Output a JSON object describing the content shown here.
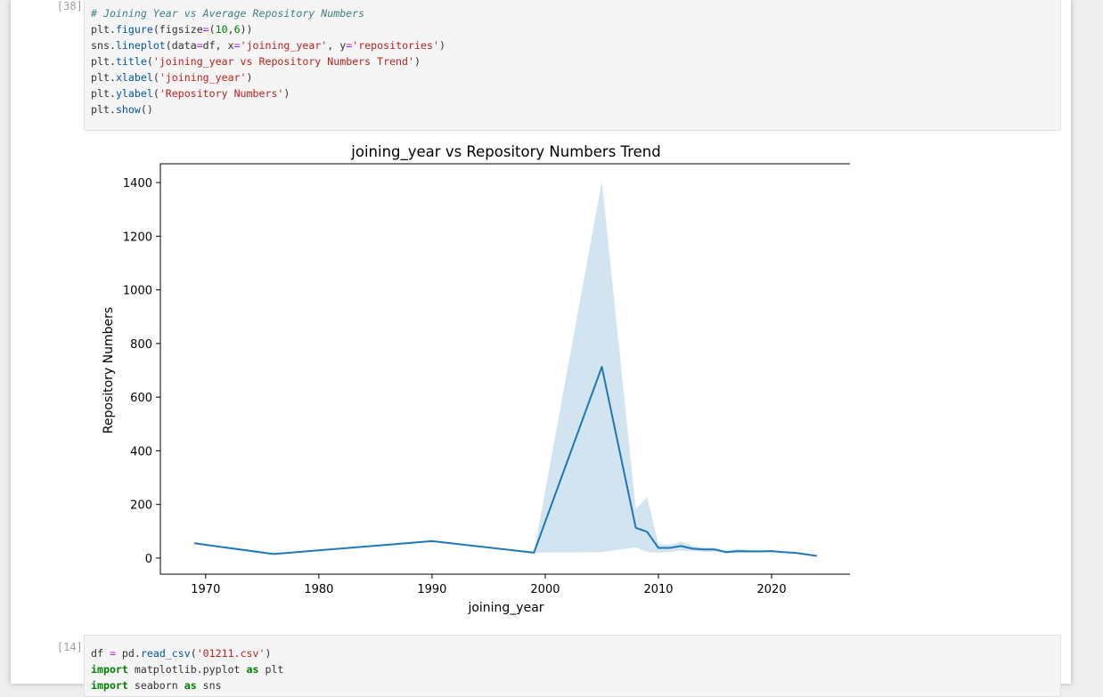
{
  "cells": [
    {
      "prompt": "[38]:",
      "lines": [
        [
          {
            "t": "# Joining Year vs Average Repository Numbers",
            "c": "comment"
          }
        ],
        [
          {
            "t": "plt",
            "c": "plain"
          },
          {
            "t": ".",
            "c": "plain"
          },
          {
            "t": "figure",
            "c": "fn"
          },
          {
            "t": "(figsize",
            "c": "plain"
          },
          {
            "t": "=",
            "c": "op"
          },
          {
            "t": "(",
            "c": "plain"
          },
          {
            "t": "10",
            "c": "num"
          },
          {
            "t": ",",
            "c": "plain"
          },
          {
            "t": "6",
            "c": "num"
          },
          {
            "t": "))",
            "c": "plain"
          }
        ],
        [
          {
            "t": "sns",
            "c": "plain"
          },
          {
            "t": ".",
            "c": "plain"
          },
          {
            "t": "lineplot",
            "c": "fn"
          },
          {
            "t": "(data",
            "c": "plain"
          },
          {
            "t": "=",
            "c": "op"
          },
          {
            "t": "df, x",
            "c": "plain"
          },
          {
            "t": "=",
            "c": "op"
          },
          {
            "t": "'joining_year'",
            "c": "str"
          },
          {
            "t": ", y",
            "c": "plain"
          },
          {
            "t": "=",
            "c": "op"
          },
          {
            "t": "'repositories'",
            "c": "str"
          },
          {
            "t": ")",
            "c": "plain"
          }
        ],
        [
          {
            "t": "plt",
            "c": "plain"
          },
          {
            "t": ".",
            "c": "plain"
          },
          {
            "t": "title",
            "c": "fn"
          },
          {
            "t": "(",
            "c": "plain"
          },
          {
            "t": "'joining_year vs Repository Numbers Trend'",
            "c": "str"
          },
          {
            "t": ")",
            "c": "plain"
          }
        ],
        [
          {
            "t": "plt",
            "c": "plain"
          },
          {
            "t": ".",
            "c": "plain"
          },
          {
            "t": "xlabel",
            "c": "fn"
          },
          {
            "t": "(",
            "c": "plain"
          },
          {
            "t": "'joining_year'",
            "c": "str"
          },
          {
            "t": ")",
            "c": "plain"
          }
        ],
        [
          {
            "t": "plt",
            "c": "plain"
          },
          {
            "t": ".",
            "c": "plain"
          },
          {
            "t": "ylabel",
            "c": "fn"
          },
          {
            "t": "(",
            "c": "plain"
          },
          {
            "t": "'Repository Numbers'",
            "c": "str"
          },
          {
            "t": ")",
            "c": "plain"
          }
        ],
        [
          {
            "t": "plt",
            "c": "plain"
          },
          {
            "t": ".",
            "c": "plain"
          },
          {
            "t": "show",
            "c": "fn"
          },
          {
            "t": "()",
            "c": "plain"
          }
        ]
      ]
    },
    {
      "prompt": "[14]:",
      "lines": [
        [
          {
            "t": "df ",
            "c": "plain"
          },
          {
            "t": "=",
            "c": "op"
          },
          {
            "t": " pd",
            "c": "plain"
          },
          {
            "t": ".",
            "c": "plain"
          },
          {
            "t": "read_csv",
            "c": "fn"
          },
          {
            "t": "(",
            "c": "plain"
          },
          {
            "t": "'01211.csv'",
            "c": "str"
          },
          {
            "t": ")",
            "c": "plain"
          }
        ],
        [
          {
            "t": "import",
            "c": "kw"
          },
          {
            "t": " matplotlib.pyplot ",
            "c": "plain"
          },
          {
            "t": "as",
            "c": "kw"
          },
          {
            "t": " plt",
            "c": "plain"
          }
        ],
        [
          {
            "t": "import",
            "c": "kw"
          },
          {
            "t": " seaborn ",
            "c": "plain"
          },
          {
            "t": "as",
            "c": "kw"
          },
          {
            "t": " sns",
            "c": "plain"
          }
        ]
      ]
    }
  ],
  "colors": {
    "line": "#1f77b4",
    "band": "#1f77b4"
  },
  "chart_data": {
    "type": "line",
    "title": "joining_year vs Repository Numbers Trend",
    "xlabel": "joining_year",
    "ylabel": "Repository Numbers",
    "xlim": [
      1966,
      2027
    ],
    "ylim": [
      -60,
      1470
    ],
    "xticks": [
      1970,
      1980,
      1990,
      2000,
      2010,
      2020
    ],
    "yticks": [
      0,
      200,
      400,
      600,
      800,
      1000,
      1200,
      1400
    ],
    "grid": false,
    "series": [
      {
        "x": [
          1969,
          1976,
          1990,
          1999,
          2005,
          2008,
          2009,
          2010,
          2011,
          2012,
          2013,
          2014,
          2015,
          2016,
          2017,
          2018,
          2019,
          2020,
          2021,
          2022,
          2024
        ],
        "values": [
          55,
          15,
          63,
          20,
          713,
          113,
          98,
          38,
          38,
          45,
          35,
          32,
          32,
          22,
          26,
          25,
          25,
          26,
          22,
          20,
          8
        ],
        "ci_lower": [
          55,
          15,
          63,
          20,
          22,
          40,
          22,
          20,
          22,
          28,
          26,
          24,
          24,
          18,
          18,
          20,
          20,
          22,
          20,
          18,
          8
        ],
        "ci_upper": [
          55,
          15,
          63,
          20,
          1405,
          183,
          228,
          52,
          50,
          60,
          45,
          40,
          38,
          28,
          35,
          30,
          28,
          30,
          24,
          22,
          8
        ]
      }
    ]
  }
}
